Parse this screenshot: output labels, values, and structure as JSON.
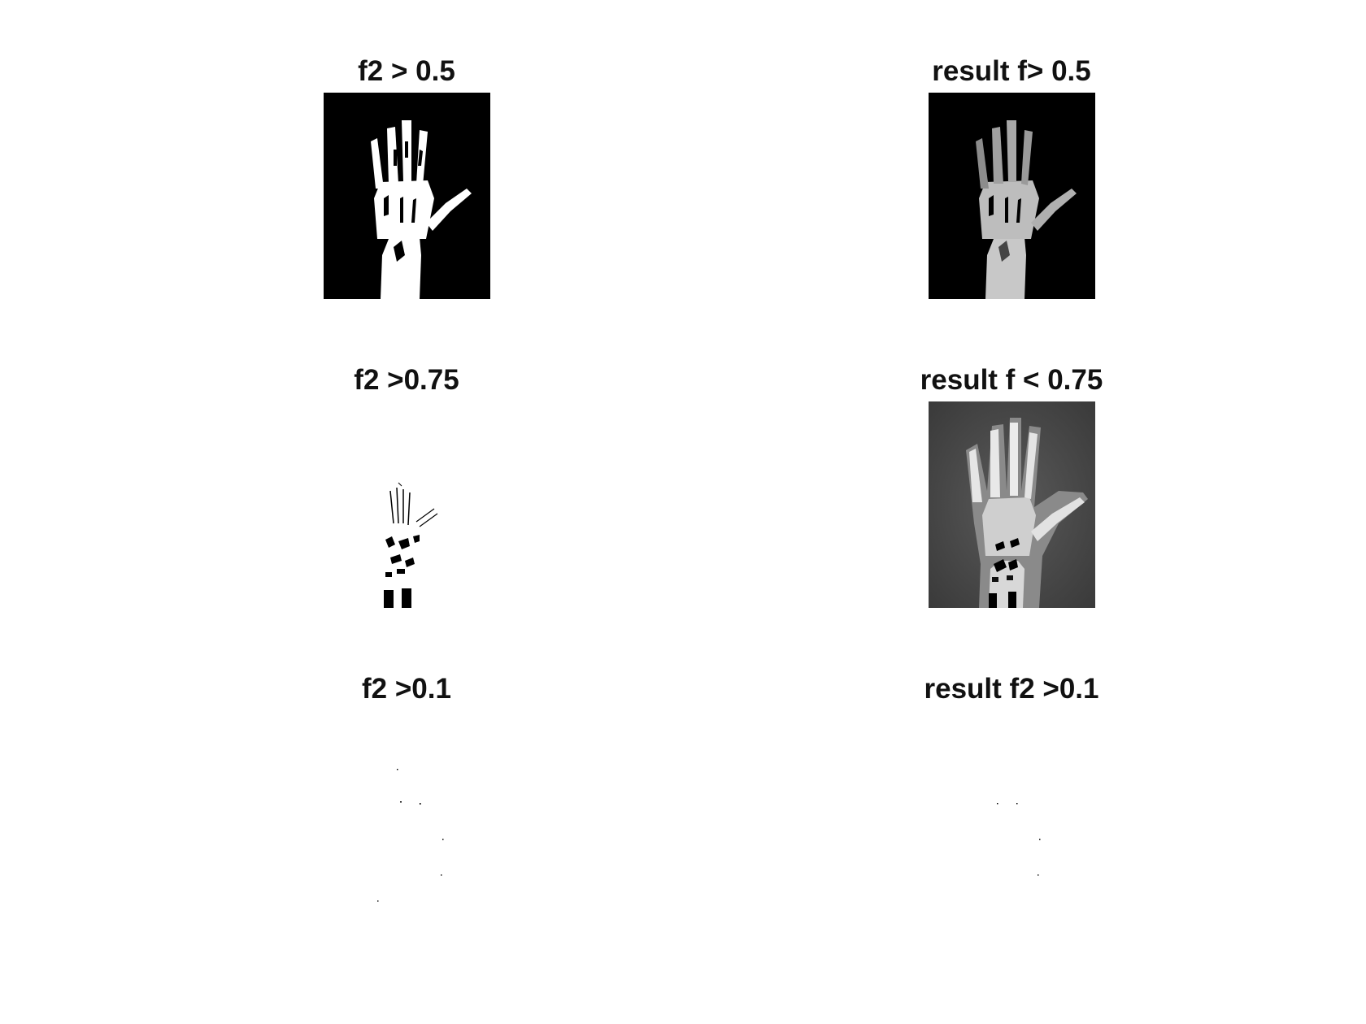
{
  "figure": {
    "panels": [
      {
        "title": "f2 > 0.5",
        "image": "binary-hand-xray-threshold-0.5"
      },
      {
        "title": "result f> 0.5",
        "image": "masked-hand-xray-threshold-0.5"
      },
      {
        "title": "f2 >0.75",
        "image": "binary-hand-xray-threshold-0.75"
      },
      {
        "title": "result f < 0.75",
        "image": "grayscale-hand-xray-result-0.75"
      },
      {
        "title": "f2 >0.1",
        "image": "binary-speckle-threshold-0.1"
      },
      {
        "title": "result f2 >0.1",
        "image": "result-speckle-threshold-0.1"
      }
    ]
  }
}
